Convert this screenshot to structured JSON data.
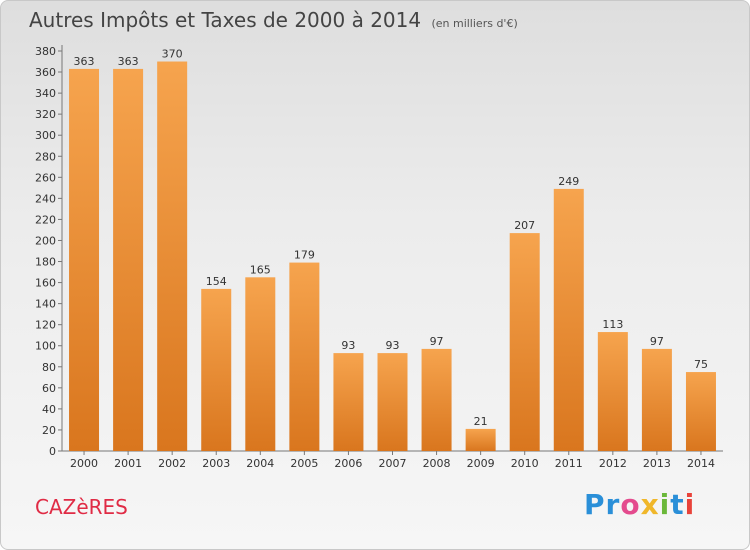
{
  "chart_data": {
    "type": "bar",
    "title": "Autres Impôts et Taxes de 2000 à 2014",
    "subtitle": "(en milliers d'€)",
    "categories": [
      "2000",
      "2001",
      "2002",
      "2003",
      "2004",
      "2005",
      "2006",
      "2007",
      "2008",
      "2009",
      "2010",
      "2011",
      "2012",
      "2013",
      "2014"
    ],
    "values": [
      363,
      363,
      370,
      154,
      165,
      179,
      93,
      93,
      97,
      21,
      207,
      249,
      113,
      97,
      75
    ],
    "ylim": [
      0,
      380
    ],
    "yticks": [
      0,
      20,
      40,
      60,
      80,
      100,
      120,
      140,
      160,
      180,
      200,
      220,
      240,
      260,
      280,
      300,
      320,
      340,
      360,
      380
    ],
    "grid": false,
    "bar_color": "#f29a3c"
  },
  "footer": {
    "city": "CAZèRES",
    "logo": [
      "Pr",
      "o",
      "x",
      "i",
      "t",
      "i"
    ]
  }
}
